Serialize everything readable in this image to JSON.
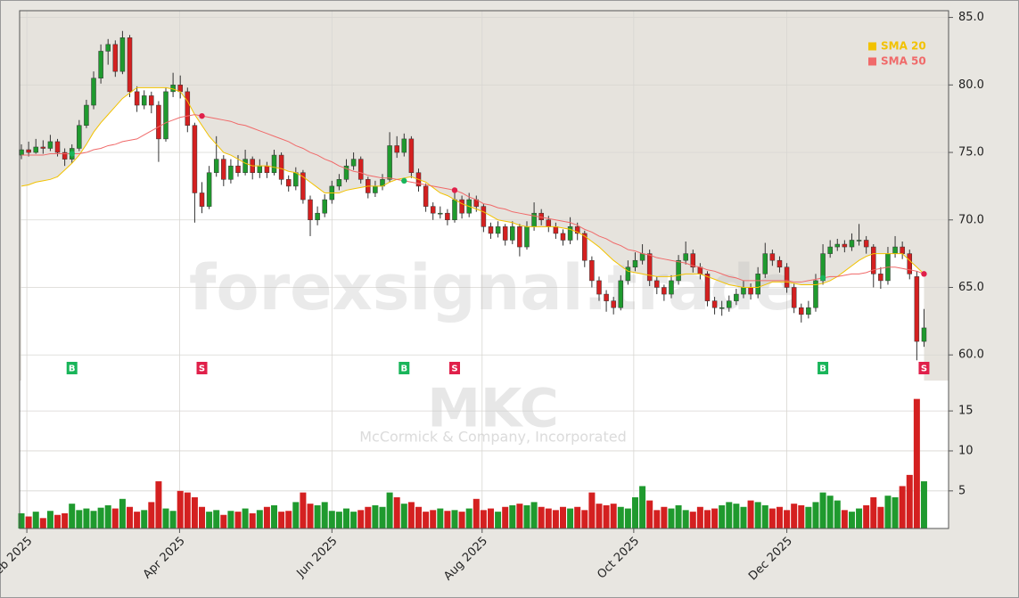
{
  "chart_data": {
    "type": "candlestick",
    "watermark": "forexsignal.trade",
    "symbol": "MKC",
    "company": "McCormick & Company, Incorporated",
    "grid": true,
    "up_color": "#1f9a2e",
    "down_color": "#d42020",
    "xlim": [
      -0.25,
      128.4
    ],
    "xticks": [
      {
        "value": 0.75,
        "label": "Feb 2025"
      },
      {
        "value": 21.9,
        "label": "Apr 2025"
      },
      {
        "value": 43,
        "label": "Jun 2025"
      },
      {
        "value": 63.8,
        "label": "Aug 2025"
      },
      {
        "value": 84.8,
        "label": "Oct 2025"
      },
      {
        "value": 106,
        "label": "Dec 2025"
      }
    ],
    "ylim": [
      58.1,
      85.5
    ],
    "yticks": [
      {
        "value": 60,
        "label": "60.0"
      },
      {
        "value": 65,
        "label": "65.0"
      },
      {
        "value": 70,
        "label": "70.0"
      },
      {
        "value": 75,
        "label": "75.0"
      },
      {
        "value": 80,
        "label": "80.0"
      },
      {
        "value": 85,
        "label": "85.0"
      }
    ],
    "ohlc": [
      [
        74.8,
        75.6,
        74.5,
        75.2
      ],
      [
        75.2,
        75.8,
        74.7,
        75.0
      ],
      [
        75.0,
        76.0,
        74.9,
        75.4
      ],
      [
        75.4,
        75.9,
        74.9,
        75.3
      ],
      [
        75.3,
        76.3,
        75.1,
        75.8
      ],
      [
        75.8,
        76.0,
        74.7,
        75.0
      ],
      [
        75.0,
        75.3,
        74.0,
        74.5
      ],
      [
        74.5,
        75.6,
        74.2,
        75.3
      ],
      [
        75.3,
        77.4,
        75.1,
        77.0
      ],
      [
        77.0,
        78.9,
        76.8,
        78.5
      ],
      [
        78.5,
        81.0,
        78.2,
        80.5
      ],
      [
        80.5,
        83.0,
        80.1,
        82.5
      ],
      [
        82.5,
        83.4,
        81.5,
        83.0
      ],
      [
        83.0,
        83.3,
        80.6,
        81.0
      ],
      [
        81.0,
        84.0,
        80.8,
        83.5
      ],
      [
        83.5,
        83.7,
        79.1,
        79.5
      ],
      [
        79.5,
        79.9,
        78.0,
        78.5
      ],
      [
        78.5,
        79.6,
        78.2,
        79.2
      ],
      [
        79.2,
        79.5,
        77.9,
        78.5
      ],
      [
        78.5,
        78.8,
        74.3,
        76.0
      ],
      [
        76.0,
        79.8,
        75.8,
        79.5
      ],
      [
        79.5,
        80.9,
        79.1,
        80.0
      ],
      [
        80.0,
        80.7,
        79.0,
        79.5
      ],
      [
        79.5,
        79.8,
        76.5,
        77.0
      ],
      [
        77.0,
        77.2,
        69.8,
        72.0
      ],
      [
        72.0,
        72.8,
        70.5,
        71.0
      ],
      [
        71.0,
        74.0,
        70.8,
        73.5
      ],
      [
        73.5,
        76.2,
        73.2,
        74.5
      ],
      [
        74.5,
        74.8,
        72.5,
        73.0
      ],
      [
        73.0,
        74.5,
        72.7,
        74.0
      ],
      [
        74.0,
        74.8,
        73.2,
        73.5
      ],
      [
        73.5,
        75.2,
        73.3,
        74.5
      ],
      [
        74.5,
        74.7,
        73.0,
        73.5
      ],
      [
        73.5,
        74.5,
        73.1,
        74.0
      ],
      [
        74.0,
        74.3,
        73.1,
        73.5
      ],
      [
        73.5,
        75.2,
        73.3,
        74.8
      ],
      [
        74.8,
        75.0,
        72.6,
        73.0
      ],
      [
        73.0,
        73.3,
        72.1,
        72.5
      ],
      [
        72.5,
        73.9,
        72.2,
        73.5
      ],
      [
        73.5,
        73.7,
        71.2,
        71.5
      ],
      [
        71.5,
        71.8,
        68.8,
        70.0
      ],
      [
        70.0,
        71.0,
        69.6,
        70.5
      ],
      [
        70.5,
        71.9,
        70.2,
        71.5
      ],
      [
        71.5,
        72.9,
        71.2,
        72.5
      ],
      [
        72.5,
        73.4,
        72.2,
        73.0
      ],
      [
        73.0,
        74.5,
        72.8,
        74.0
      ],
      [
        74.0,
        75.0,
        73.7,
        74.5
      ],
      [
        74.5,
        74.7,
        72.7,
        73.0
      ],
      [
        73.0,
        73.2,
        71.6,
        72.0
      ],
      [
        72.0,
        72.9,
        71.7,
        72.5
      ],
      [
        72.5,
        73.4,
        72.2,
        73.0
      ],
      [
        73.0,
        76.5,
        72.8,
        75.5
      ],
      [
        75.5,
        76.2,
        74.6,
        75.0
      ],
      [
        75.0,
        76.4,
        74.7,
        76.0
      ],
      [
        76.0,
        76.2,
        73.1,
        73.5
      ],
      [
        73.5,
        73.8,
        72.1,
        72.5
      ],
      [
        72.5,
        72.7,
        70.6,
        71.0
      ],
      [
        71.0,
        71.3,
        70.0,
        70.5
      ],
      [
        70.5,
        71.0,
        70.1,
        70.5
      ],
      [
        70.5,
        70.8,
        69.6,
        70.0
      ],
      [
        70.0,
        72.0,
        69.8,
        71.5
      ],
      [
        71.5,
        71.8,
        70.1,
        70.5
      ],
      [
        70.5,
        72.0,
        70.2,
        71.5
      ],
      [
        71.5,
        71.8,
        70.6,
        71.0
      ],
      [
        71.0,
        71.2,
        69.1,
        69.5
      ],
      [
        69.5,
        69.8,
        68.6,
        69.0
      ],
      [
        69.0,
        69.9,
        68.7,
        69.5
      ],
      [
        69.5,
        69.7,
        68.1,
        68.5
      ],
      [
        68.5,
        69.9,
        68.2,
        69.5
      ],
      [
        69.5,
        69.7,
        67.3,
        68.0
      ],
      [
        68.0,
        69.9,
        67.8,
        69.5
      ],
      [
        69.5,
        71.3,
        69.2,
        70.5
      ],
      [
        70.5,
        70.8,
        69.6,
        70.0
      ],
      [
        70.0,
        70.3,
        69.1,
        69.5
      ],
      [
        69.5,
        69.8,
        68.6,
        69.0
      ],
      [
        69.0,
        69.3,
        68.1,
        68.5
      ],
      [
        68.5,
        70.2,
        68.2,
        69.5
      ],
      [
        69.5,
        69.8,
        68.5,
        69.0
      ],
      [
        69.0,
        69.2,
        66.5,
        67.0
      ],
      [
        67.0,
        67.3,
        65.0,
        65.5
      ],
      [
        65.5,
        65.8,
        64.0,
        64.5
      ],
      [
        64.5,
        64.8,
        63.2,
        64.0
      ],
      [
        64.0,
        64.3,
        63.0,
        63.5
      ],
      [
        63.5,
        65.9,
        63.3,
        65.5
      ],
      [
        65.5,
        67.0,
        65.2,
        66.5
      ],
      [
        66.5,
        67.6,
        66.2,
        67.0
      ],
      [
        67.0,
        68.2,
        66.7,
        67.5
      ],
      [
        67.5,
        67.8,
        65.1,
        65.5
      ],
      [
        65.5,
        65.8,
        64.5,
        65.0
      ],
      [
        65.0,
        65.2,
        64.0,
        64.5
      ],
      [
        64.5,
        65.9,
        64.2,
        65.5
      ],
      [
        65.5,
        67.4,
        65.2,
        67.0
      ],
      [
        67.0,
        68.4,
        66.7,
        67.5
      ],
      [
        67.5,
        67.8,
        66.1,
        66.5
      ],
      [
        66.5,
        66.8,
        65.6,
        66.0
      ],
      [
        66.0,
        66.2,
        63.6,
        64.0
      ],
      [
        64.0,
        64.3,
        63.0,
        63.5
      ],
      [
        63.5,
        64.0,
        62.9,
        63.5
      ],
      [
        63.5,
        64.4,
        63.2,
        64.0
      ],
      [
        64.0,
        64.9,
        63.7,
        64.5
      ],
      [
        64.5,
        65.5,
        64.2,
        65.0
      ],
      [
        65.0,
        65.3,
        64.1,
        64.5
      ],
      [
        64.5,
        66.5,
        64.2,
        66.0
      ],
      [
        66.0,
        68.3,
        65.7,
        67.5
      ],
      [
        67.5,
        67.8,
        66.6,
        67.0
      ],
      [
        67.0,
        67.3,
        66.1,
        66.5
      ],
      [
        66.5,
        66.8,
        64.6,
        65.0
      ],
      [
        65.0,
        65.3,
        63.1,
        63.5
      ],
      [
        63.5,
        63.8,
        62.4,
        63.0
      ],
      [
        63.0,
        64.0,
        62.7,
        63.5
      ],
      [
        63.5,
        66.0,
        63.2,
        65.5
      ],
      [
        65.5,
        68.2,
        65.2,
        67.5
      ],
      [
        67.5,
        68.5,
        67.2,
        68.0
      ],
      [
        68.0,
        68.6,
        67.7,
        68.2
      ],
      [
        68.2,
        68.5,
        67.6,
        68.0
      ],
      [
        68.0,
        69.0,
        67.7,
        68.5
      ],
      [
        68.5,
        69.7,
        68.1,
        68.5
      ],
      [
        68.5,
        68.8,
        67.5,
        68.0
      ],
      [
        68.0,
        68.2,
        65.0,
        66.0
      ],
      [
        66.0,
        66.5,
        64.9,
        65.5
      ],
      [
        65.5,
        68.0,
        65.2,
        67.5
      ],
      [
        67.5,
        68.8,
        67.2,
        68.0
      ],
      [
        68.0,
        68.4,
        67.1,
        67.5
      ],
      [
        67.5,
        67.8,
        65.6,
        66.0
      ],
      [
        65.8,
        66.2,
        59.6,
        61.0
      ],
      [
        61.0,
        63.4,
        60.6,
        62.0
      ]
    ],
    "series": [
      {
        "name": "SMA 20",
        "color": "#f2c200",
        "values": [
          72.5,
          72.6,
          72.8,
          72.9,
          73.0,
          73.2,
          73.7,
          74.2,
          74.8,
          75.6,
          76.5,
          77.2,
          77.8,
          78.4,
          79.0,
          79.4,
          79.8,
          79.8,
          79.8,
          79.8,
          79.8,
          79.7,
          79.5,
          78.8,
          77.8,
          77.0,
          76.2,
          75.6,
          75.0,
          74.8,
          74.5,
          74.2,
          74.0,
          74.0,
          74.0,
          73.9,
          73.8,
          73.6,
          73.5,
          73.2,
          72.8,
          72.4,
          72.0,
          72.0,
          72.0,
          72.2,
          72.3,
          72.4,
          72.5,
          72.5,
          72.5,
          72.8,
          73.0,
          73.1,
          73.2,
          73.0,
          72.8,
          72.4,
          72.0,
          71.8,
          71.5,
          71.2,
          71.0,
          70.8,
          70.6,
          70.3,
          70.0,
          69.9,
          69.8,
          69.6,
          69.5,
          69.5,
          69.5,
          69.5,
          69.5,
          69.4,
          69.3,
          69.1,
          68.8,
          68.4,
          68.0,
          67.5,
          67.0,
          66.6,
          66.2,
          66.1,
          66.0,
          65.9,
          65.8,
          65.8,
          65.8,
          65.9,
          66.0,
          66.0,
          66.0,
          65.8,
          65.6,
          65.4,
          65.2,
          65.1,
          65.0,
          65.0,
          65.0,
          65.2,
          65.4,
          65.4,
          65.4,
          65.3,
          65.2,
          65.2,
          65.2,
          65.3,
          65.5,
          65.8,
          66.2,
          66.6,
          67.0,
          67.3,
          67.5,
          67.5,
          67.5,
          67.5,
          67.5,
          67.0,
          66.5,
          66.0
        ]
      },
      {
        "name": "SMA 50",
        "color": "#f06a6a",
        "values": [
          74.8,
          74.8,
          74.8,
          74.8,
          74.9,
          74.9,
          74.9,
          74.9,
          74.9,
          75.0,
          75.2,
          75.3,
          75.5,
          75.6,
          75.8,
          75.9,
          76.0,
          76.3,
          76.6,
          76.9,
          77.2,
          77.4,
          77.6,
          77.7,
          77.8,
          77.7,
          77.6,
          77.5,
          77.4,
          77.3,
          77.1,
          77.0,
          76.8,
          76.6,
          76.4,
          76.2,
          76.0,
          75.8,
          75.5,
          75.3,
          75.0,
          74.8,
          74.5,
          74.3,
          74.0,
          73.8,
          73.6,
          73.5,
          73.3,
          73.2,
          73.1,
          73.1,
          73.0,
          72.9,
          72.8,
          72.7,
          72.6,
          72.5,
          72.4,
          72.3,
          72.2,
          72.0,
          71.7,
          71.5,
          71.2,
          71.1,
          70.9,
          70.8,
          70.6,
          70.5,
          70.4,
          70.3,
          70.2,
          70.1,
          70.0,
          69.9,
          69.8,
          69.6,
          69.3,
          69.1,
          68.8,
          68.6,
          68.3,
          68.1,
          67.8,
          67.7,
          67.5,
          67.4,
          67.2,
          67.1,
          67.0,
          66.9,
          66.8,
          66.6,
          66.5,
          66.3,
          66.2,
          66.0,
          65.8,
          65.7,
          65.5,
          65.5,
          65.5,
          65.5,
          65.5,
          65.5,
          65.5,
          65.4,
          65.4,
          65.5,
          65.6,
          65.7,
          65.8,
          65.8,
          65.9,
          66.0,
          66.0,
          66.1,
          66.3,
          66.4,
          66.5,
          66.5,
          66.4,
          66.3,
          66.2,
          66.0
        ]
      }
    ],
    "volume": {
      "ylim": [
        0.3,
        18.8
      ],
      "yticks": [
        5,
        10,
        15
      ],
      "values": [
        2.2,
        1.8,
        2.4,
        1.6,
        2.5,
        2.0,
        2.2,
        3.4,
        2.6,
        2.8,
        2.5,
        2.9,
        3.2,
        2.8,
        4.0,
        3.0,
        2.4,
        2.6,
        3.6,
        6.2,
        2.8,
        2.5,
        5.0,
        4.8,
        4.2,
        3.0,
        2.4,
        2.6,
        2.0,
        2.5,
        2.4,
        2.8,
        2.2,
        2.6,
        3.0,
        3.2,
        2.4,
        2.5,
        3.6,
        4.8,
        3.4,
        3.2,
        3.6,
        2.5,
        2.4,
        2.8,
        2.4,
        2.6,
        3.0,
        3.2,
        3.0,
        4.8,
        4.2,
        3.4,
        3.6,
        3.0,
        2.4,
        2.6,
        2.8,
        2.5,
        2.6,
        2.4,
        2.8,
        4.0,
        2.6,
        2.8,
        2.4,
        3.0,
        3.2,
        3.4,
        3.2,
        3.6,
        3.0,
        2.8,
        2.6,
        3.0,
        2.8,
        3.0,
        2.6,
        4.8,
        3.4,
        3.2,
        3.4,
        3.0,
        2.8,
        4.2,
        5.6,
        3.8,
        2.6,
        3.0,
        2.8,
        3.2,
        2.6,
        2.4,
        3.0,
        2.6,
        2.8,
        3.2,
        3.6,
        3.4,
        3.0,
        3.8,
        3.6,
        3.2,
        2.8,
        3.0,
        2.6,
        3.4,
        3.2,
        3.0,
        3.6,
        4.8,
        4.4,
        3.8,
        2.6,
        2.4,
        2.8,
        3.2,
        4.2,
        3.0,
        4.4,
        4.2,
        5.6,
        7.0,
        16.5,
        6.2
      ]
    },
    "signals": [
      {
        "index": 7,
        "label": "B"
      },
      {
        "index": 25,
        "label": "S"
      },
      {
        "index": 53,
        "label": "B"
      },
      {
        "index": 60,
        "label": "S"
      },
      {
        "index": 111,
        "label": "B"
      },
      {
        "index": 125,
        "label": "S"
      }
    ]
  }
}
